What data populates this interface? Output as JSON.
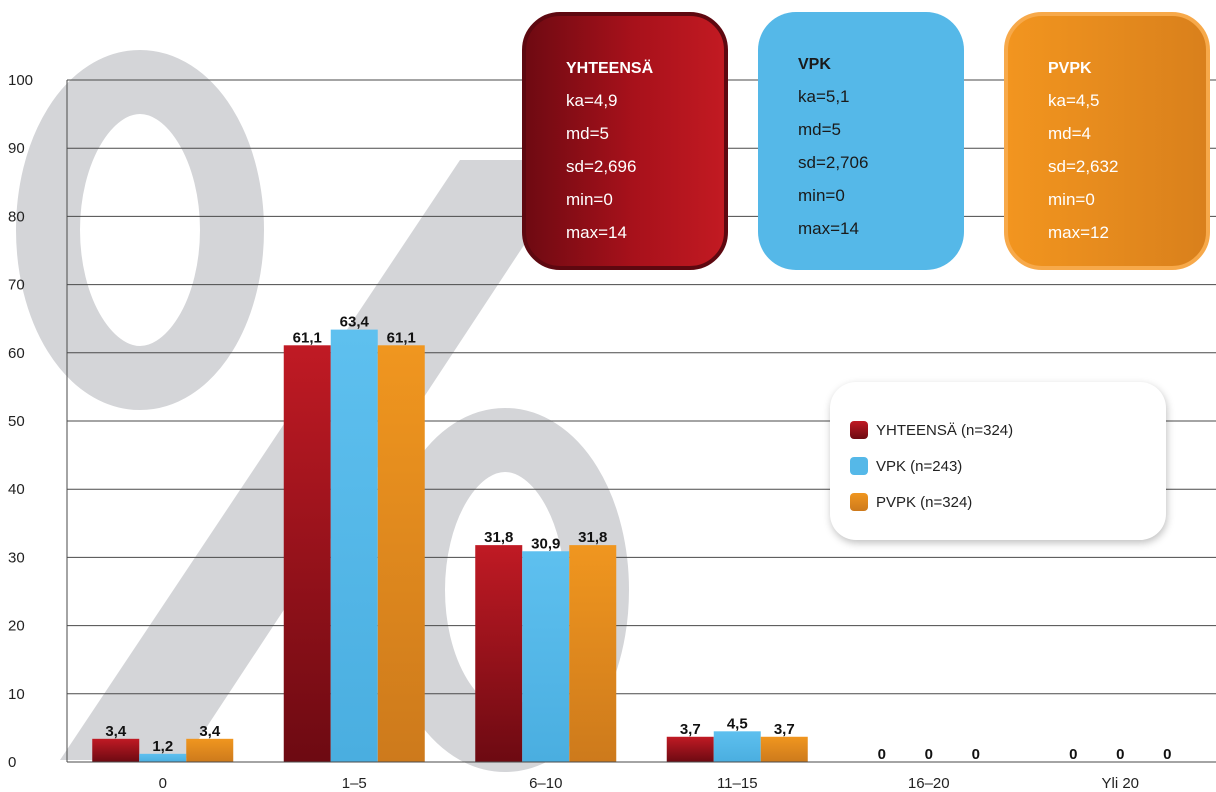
{
  "chart_data": {
    "type": "bar",
    "categories": [
      "0",
      "1–5",
      "6–10",
      "11–15",
      "16–20",
      "Yli 20"
    ],
    "series": [
      {
        "name": "YHTEENSÄ (n=324)",
        "values": [
          3.4,
          61.1,
          31.8,
          3.7,
          0,
          0
        ],
        "labels": [
          "3,4",
          "61,1",
          "31,8",
          "3,7",
          "0",
          "0"
        ]
      },
      {
        "name": "VPK (n=243)",
        "values": [
          1.2,
          63.4,
          30.9,
          4.5,
          0,
          0
        ],
        "labels": [
          "1,2",
          "63,4",
          "30,9",
          "4,5",
          "0",
          "0"
        ]
      },
      {
        "name": "PVPK (n=324)",
        "values": [
          3.4,
          61.1,
          31.8,
          3.7,
          0,
          0
        ],
        "labels": [
          "3,4",
          "61,1",
          "31,8",
          "3,7",
          "0",
          "0"
        ]
      }
    ],
    "ylim": [
      0,
      100
    ],
    "yticks": [
      "0",
      "10",
      "20",
      "30",
      "40",
      "50",
      "60",
      "70",
      "80",
      "90",
      "100"
    ],
    "grid": true,
    "legend_position": "right",
    "colors": [
      "#9d0f1a",
      "#55b8e8",
      "#e88a1f"
    ],
    "watermark_text": "%"
  },
  "stat_boxes": [
    {
      "title": "YHTEENSÄ",
      "lines": [
        "ka=4,9",
        "md=5",
        "sd=2,696",
        "min=0",
        "max=14"
      ]
    },
    {
      "title": "VPK",
      "lines": [
        "ka=5,1",
        "md=5",
        "sd=2,706",
        "min=0",
        "max=14"
      ]
    },
    {
      "title": "PVPK",
      "lines": [
        "ka=4,5",
        "md=4",
        "sd=2,632",
        "min=0",
        "max=12"
      ]
    }
  ],
  "legend": {
    "items": [
      "YHTEENSÄ (n=324)",
      "VPK (n=243)",
      "PVPK (n=324)"
    ]
  }
}
